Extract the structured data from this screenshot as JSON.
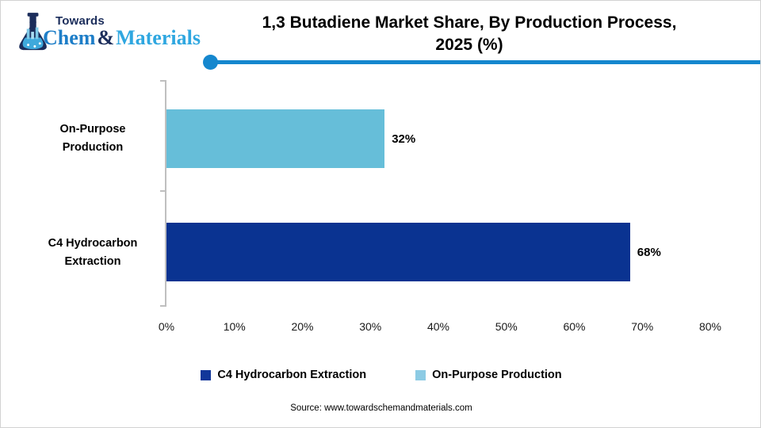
{
  "logo": {
    "towards": "Towards",
    "chem": "Chem",
    "amp": "&",
    "materials": "Materials"
  },
  "header": {
    "title_line1": "1,3 Butadiene Market Share, By Production Process,",
    "title_line2": "2025 (%)"
  },
  "chart_data": {
    "type": "bar",
    "orientation": "horizontal",
    "title": "1,3 Butadiene Market Share, By Production Process, 2025 (%)",
    "categories": [
      "On-Purpose Production",
      "C4 Hydrocarbon Extraction"
    ],
    "category_lines": [
      [
        "On-Purpose",
        "Production"
      ],
      [
        "C4 Hydrocarbon",
        "Extraction"
      ]
    ],
    "values": [
      32,
      68
    ],
    "value_labels": [
      "32%",
      "68%"
    ],
    "bar_colors": [
      "#66bed9",
      "#0a3391"
    ],
    "xlim": [
      0,
      80
    ],
    "x_ticks": [
      "0%",
      "10%",
      "20%",
      "30%",
      "40%",
      "50%",
      "60%",
      "70%",
      "80%"
    ],
    "grid": false,
    "legend_position": "bottom",
    "legend": [
      {
        "label": "C4 Hydrocarbon Extraction",
        "color": "#12379a"
      },
      {
        "label": "On-Purpose Production",
        "color": "#8ccbe4"
      }
    ]
  },
  "footer": {
    "source": "Source: www.towardschemandmaterials.com"
  },
  "colors": {
    "accent_line": "#1587ce",
    "axis_gray": "#bfbfbf",
    "brand_navy": "#1b2d5b",
    "brand_blue": "#1e7ec8",
    "brand_lightblue": "#2fa7e0"
  }
}
